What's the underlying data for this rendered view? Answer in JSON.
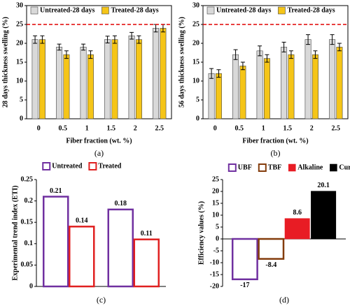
{
  "chart_data": [
    {
      "type": "bar",
      "caption": "(a)",
      "ylabel": "28 days thickness swelling (%)",
      "xlabel": "Fiber fraction (wt. %)",
      "categories": [
        "0",
        "0.5",
        "1",
        "1.5",
        "2",
        "2.5"
      ],
      "series": [
        {
          "name": "Untreated-28 days",
          "color": "#d9d9d9",
          "filled": true,
          "values": [
            21,
            19,
            19,
            21,
            22,
            24
          ],
          "errors": [
            1,
            0.8,
            0.8,
            0.9,
            0.9,
            1
          ]
        },
        {
          "name": "Treated-28 days",
          "color": "#f5c518",
          "filled": true,
          "values": [
            21,
            17,
            17,
            21,
            21,
            24
          ],
          "errors": [
            1,
            1,
            1,
            1,
            1,
            1
          ]
        }
      ],
      "ylim": [
        0,
        30
      ],
      "yticks": [
        0,
        5,
        10,
        15,
        20,
        25,
        30
      ],
      "hline": 25,
      "hline_color": "#e00000",
      "legend": "top"
    },
    {
      "type": "bar",
      "caption": "(b)",
      "ylabel": "56 days thickness swelling (%)",
      "xlabel": "Fiber fraction (wt. %)",
      "categories": [
        "0",
        "0.5",
        "1",
        "1.5",
        "2",
        "2.5"
      ],
      "series": [
        {
          "name": "Untreated-28 days",
          "color": "#d9d9d9",
          "filled": true,
          "values": [
            12,
            17,
            18,
            19,
            21,
            21
          ],
          "errors": [
            1.3,
            1.3,
            1.3,
            1.3,
            1.3,
            1.3
          ]
        },
        {
          "name": "Treated-28 days",
          "color": "#f5c518",
          "filled": true,
          "values": [
            12,
            14,
            16,
            17,
            17,
            19
          ],
          "errors": [
            1,
            1,
            1,
            1,
            1,
            1
          ]
        }
      ],
      "ylim": [
        0,
        30
      ],
      "yticks": [
        0,
        5,
        10,
        15,
        20,
        25,
        30
      ],
      "hline": 25,
      "hline_color": "#e00000",
      "legend": "top"
    },
    {
      "type": "bar",
      "caption": "(c)",
      "ylabel": "Experimental trend index (ETI)",
      "categories": [
        null,
        null
      ],
      "series": [
        {
          "name": "Untreated",
          "color": "#7030a0",
          "filled": false,
          "values": [
            0.21,
            0.18
          ]
        },
        {
          "name": "Treated",
          "color": "#e02020",
          "filled": false,
          "values": [
            0.14,
            0.11
          ]
        }
      ],
      "ylim": [
        0,
        0.25
      ],
      "yticks": [
        0,
        0.05,
        0.1,
        0.15,
        0.2,
        0.25
      ],
      "data_labels": true,
      "legend": "above"
    },
    {
      "type": "bar",
      "caption": "(d)",
      "ylabel": "Efficiency values (%)",
      "categories": [
        null
      ],
      "series": [
        {
          "name": "UBF",
          "color": "#7030a0",
          "filled": false,
          "values": [
            -17
          ]
        },
        {
          "name": "TBF",
          "color": "#843c0c",
          "filled": false,
          "values": [
            -8.4
          ]
        },
        {
          "name": "Alkaline",
          "color": "#e81c24",
          "filled": true,
          "values": [
            8.6
          ]
        },
        {
          "name": "Curing",
          "color": "#000000",
          "filled": true,
          "values": [
            20.1
          ]
        }
      ],
      "ylim": [
        -20,
        25
      ],
      "yticks": [
        -20,
        -15,
        -10,
        -5,
        0,
        5,
        10,
        15,
        20,
        25
      ],
      "data_labels": true,
      "legend": "above"
    }
  ]
}
